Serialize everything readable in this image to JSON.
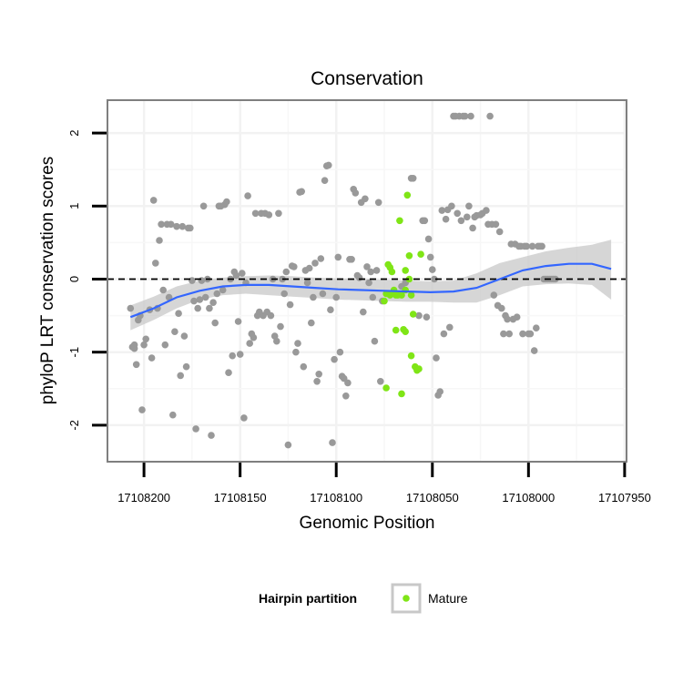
{
  "chart_data": {
    "type": "scatter",
    "title": "Conservation",
    "xlabel": "Genomic Position",
    "ylabel": "phyloP LRT conservation scores",
    "x_reversed": true,
    "xlim": [
      17108219,
      17107949
    ],
    "ylim": [
      -2.5,
      2.45
    ],
    "x_ticks": [
      17108200,
      17108150,
      17108100,
      17108050,
      17108000,
      17107950
    ],
    "x_tick_labels": [
      "17108200",
      "17108150",
      "17108100",
      "17108050",
      "17108000",
      "17107950"
    ],
    "y_ticks": [
      -2,
      -1,
      0,
      1,
      2
    ],
    "y_tick_labels": [
      "-2",
      "-1",
      "0",
      "1",
      "2"
    ],
    "grid": true,
    "reference_line": {
      "y": 0,
      "style": "dashed"
    },
    "legend": {
      "title": "Hairpin partition",
      "placement": "bottom",
      "entries": [
        "Mature"
      ]
    },
    "colors": {
      "other": "#999999",
      "mature": "#7FE516",
      "smooth": "#3366FF",
      "band": "#C8C8C8",
      "panel_border": "#7F7F7F"
    },
    "smooth": {
      "x": [
        17108207,
        17108195,
        17108183,
        17108171,
        17108159,
        17108147,
        17108135,
        17108123,
        17108111,
        17108099,
        17108087,
        17108075,
        17108063,
        17108051,
        17108039,
        17108027,
        17108015,
        17108003,
        17107991,
        17107979,
        17107967,
        17107957
      ],
      "y": [
        -0.52,
        -0.4,
        -0.25,
        -0.16,
        -0.1,
        -0.08,
        -0.08,
        -0.1,
        -0.12,
        -0.14,
        -0.15,
        -0.16,
        -0.17,
        -0.18,
        -0.17,
        -0.12,
        0.0,
        0.12,
        0.18,
        0.21,
        0.21,
        0.14
      ],
      "lower": [
        -0.7,
        -0.56,
        -0.4,
        -0.28,
        -0.22,
        -0.2,
        -0.22,
        -0.24,
        -0.26,
        -0.28,
        -0.29,
        -0.3,
        -0.31,
        -0.31,
        -0.32,
        -0.32,
        -0.22,
        -0.1,
        -0.07,
        -0.06,
        -0.08,
        -0.28
      ],
      "upper": [
        -0.36,
        -0.24,
        -0.1,
        -0.02,
        0.02,
        0.04,
        0.05,
        0.04,
        0.02,
        0.01,
        0.0,
        -0.01,
        -0.02,
        -0.03,
        -0.02,
        0.08,
        0.22,
        0.3,
        0.38,
        0.43,
        0.47,
        0.54
      ]
    },
    "series": [
      {
        "name": "",
        "group": "other",
        "points": [
          [
            17108207,
            -0.4
          ],
          [
            17108206,
            -0.93
          ],
          [
            17108205,
            -0.95
          ],
          [
            17108205,
            -0.9
          ],
          [
            17108204,
            -1.17
          ],
          [
            17108203,
            -0.56
          ],
          [
            17108202,
            -0.5
          ],
          [
            17108201,
            -1.79
          ],
          [
            17108200,
            -0.9
          ],
          [
            17108199,
            -0.82
          ],
          [
            17108197,
            -0.42
          ],
          [
            17108196,
            -1.08
          ],
          [
            17108195,
            1.08
          ],
          [
            17108194,
            0.22
          ],
          [
            17108193,
            -0.4
          ],
          [
            17108192,
            0.53
          ],
          [
            17108191,
            0.75
          ],
          [
            17108190,
            -0.15
          ],
          [
            17108189,
            -0.9
          ],
          [
            17108188,
            0.75
          ],
          [
            17108187,
            -0.25
          ],
          [
            17108186,
            0.75
          ],
          [
            17108185,
            -1.86
          ],
          [
            17108184,
            -0.72
          ],
          [
            17108183,
            0.72
          ],
          [
            17108182,
            -0.47
          ],
          [
            17108181,
            -1.32
          ],
          [
            17108180,
            0.72
          ],
          [
            17108179,
            -0.78
          ],
          [
            17108178,
            -1.2
          ],
          [
            17108177,
            0.7
          ],
          [
            17108176,
            0.7
          ],
          [
            17108175,
            -0.02
          ],
          [
            17108174,
            -0.3
          ],
          [
            17108173,
            -2.05
          ],
          [
            17108172,
            -0.4
          ],
          [
            17108171,
            -0.28
          ],
          [
            17108170,
            -0.02
          ],
          [
            17108169,
            1.0
          ],
          [
            17108168,
            -0.25
          ],
          [
            17108167,
            0.0
          ],
          [
            17108166,
            -0.4
          ],
          [
            17108165,
            -2.14
          ],
          [
            17108164,
            -0.32
          ],
          [
            17108163,
            -0.6
          ],
          [
            17108162,
            -0.2
          ],
          [
            17108161,
            1.0
          ],
          [
            17108160,
            1.0
          ],
          [
            17108159,
            -0.15
          ],
          [
            17108158,
            1.02
          ],
          [
            17108157,
            1.06
          ],
          [
            17108156,
            -1.28
          ],
          [
            17108155,
            0.0
          ],
          [
            17108154,
            -1.05
          ],
          [
            17108153,
            0.1
          ],
          [
            17108152,
            0.05
          ],
          [
            17108151,
            -0.58
          ],
          [
            17108150,
            -1.03
          ],
          [
            17108149,
            0.08
          ],
          [
            17108148,
            -1.9
          ],
          [
            17108147,
            -0.05
          ],
          [
            17108146,
            1.14
          ],
          [
            17108145,
            -0.88
          ],
          [
            17108144,
            -0.75
          ],
          [
            17108143,
            -0.8
          ],
          [
            17108142,
            0.9
          ],
          [
            17108141,
            -0.5
          ],
          [
            17108140,
            -0.45
          ],
          [
            17108139,
            0.9
          ],
          [
            17108138,
            -0.5
          ],
          [
            17108137,
            0.9
          ],
          [
            17108136,
            -0.45
          ],
          [
            17108135,
            0.88
          ],
          [
            17108134,
            -0.5
          ],
          [
            17108133,
            0.0
          ],
          [
            17108132,
            -0.78
          ],
          [
            17108131,
            -0.85
          ],
          [
            17108130,
            0.9
          ],
          [
            17108129,
            -0.65
          ],
          [
            17108128,
            0.0
          ],
          [
            17108127,
            -0.2
          ],
          [
            17108126,
            0.1
          ],
          [
            17108125,
            -2.27
          ],
          [
            17108124,
            -0.35
          ],
          [
            17108123,
            0.18
          ],
          [
            17108122,
            0.17
          ],
          [
            17108121,
            -1.0
          ],
          [
            17108120,
            -0.88
          ],
          [
            17108119,
            1.19
          ],
          [
            17108118,
            1.2
          ],
          [
            17108117,
            -1.2
          ],
          [
            17108116,
            0.12
          ],
          [
            17108115,
            -0.05
          ],
          [
            17108114,
            0.15
          ],
          [
            17108113,
            -0.6
          ],
          [
            17108112,
            -0.25
          ],
          [
            17108111,
            0.22
          ],
          [
            17108110,
            -1.4
          ],
          [
            17108109,
            -1.3
          ],
          [
            17108108,
            0.28
          ],
          [
            17108107,
            -0.2
          ],
          [
            17108106,
            1.35
          ],
          [
            17108105,
            1.55
          ],
          [
            17108104,
            1.56
          ],
          [
            17108103,
            -0.42
          ],
          [
            17108102,
            -2.24
          ],
          [
            17108101,
            -1.1
          ],
          [
            17108100,
            -0.25
          ],
          [
            17108099,
            0.3
          ],
          [
            17108098,
            -1.0
          ],
          [
            17108097,
            -1.33
          ],
          [
            17108096,
            -1.36
          ],
          [
            17108095,
            -1.6
          ],
          [
            17108094,
            -1.42
          ],
          [
            17108093,
            0.27
          ],
          [
            17108092,
            0.27
          ],
          [
            17108091,
            1.23
          ],
          [
            17108090,
            1.18
          ],
          [
            17108089,
            0.05
          ],
          [
            17108088,
            0.02
          ],
          [
            17108087,
            1.05
          ],
          [
            17108086,
            -0.45
          ],
          [
            17108085,
            1.1
          ],
          [
            17108084,
            0.17
          ],
          [
            17108083,
            -0.05
          ],
          [
            17108082,
            0.1
          ],
          [
            17108081,
            -0.25
          ],
          [
            17108080,
            -0.85
          ],
          [
            17108079,
            0.12
          ],
          [
            17108078,
            1.05
          ],
          [
            17108077,
            -1.4
          ],
          [
            17108076,
            -0.3
          ],
          [
            17108066,
            -0.1
          ],
          [
            17108064,
            -0.05
          ],
          [
            17108061,
            1.38
          ],
          [
            17108060,
            1.38
          ],
          [
            17108057,
            -0.5
          ],
          [
            17108055,
            0.8
          ],
          [
            17108054,
            0.8
          ],
          [
            17108053,
            -0.52
          ],
          [
            17108052,
            0.55
          ],
          [
            17108051,
            0.3
          ],
          [
            17108050,
            0.13
          ],
          [
            17108049,
            0.0
          ],
          [
            17108048,
            -1.08
          ],
          [
            17108047,
            -1.59
          ],
          [
            17108046,
            -1.54
          ],
          [
            17108045,
            0.94
          ],
          [
            17108044,
            -0.75
          ],
          [
            17108043,
            0.82
          ],
          [
            17108042,
            0.95
          ],
          [
            17108041,
            -0.66
          ],
          [
            17108040,
            1.0
          ],
          [
            17108039,
            2.23
          ],
          [
            17108038,
            2.23
          ],
          [
            17108037,
            0.9
          ],
          [
            17108036,
            2.23
          ],
          [
            17108035,
            0.8
          ],
          [
            17108034,
            2.23
          ],
          [
            17108033,
            2.23
          ],
          [
            17108032,
            0.85
          ],
          [
            17108031,
            1.0
          ],
          [
            17108030,
            2.23
          ],
          [
            17108029,
            0.7
          ],
          [
            17108028,
            0.85
          ],
          [
            17108027,
            0.87
          ],
          [
            17108025,
            0.88
          ],
          [
            17108024,
            0.9
          ],
          [
            17108022,
            0.94
          ],
          [
            17108021,
            0.75
          ],
          [
            17108020,
            2.23
          ],
          [
            17108019,
            0.75
          ],
          [
            17108018,
            -0.22
          ],
          [
            17108017,
            0.75
          ],
          [
            17108016,
            -0.36
          ],
          [
            17108015,
            0.65
          ],
          [
            17108014,
            -0.4
          ],
          [
            17108013,
            -0.75
          ],
          [
            17108012,
            -0.5
          ],
          [
            17108011,
            -0.55
          ],
          [
            17108010,
            -0.75
          ],
          [
            17108009,
            0.48
          ],
          [
            17108008,
            -0.55
          ],
          [
            17108007,
            0.48
          ],
          [
            17108006,
            -0.52
          ],
          [
            17108005,
            0.45
          ],
          [
            17108004,
            0.45
          ],
          [
            17108003,
            -0.75
          ],
          [
            17108002,
            0.45
          ],
          [
            17108001,
            0.45
          ],
          [
            17108000,
            -0.75
          ],
          [
            17107999,
            -0.75
          ],
          [
            17107998,
            0.45
          ],
          [
            17107997,
            -0.98
          ],
          [
            17107996,
            -0.67
          ],
          [
            17107995,
            0.45
          ],
          [
            17107994,
            0.45
          ],
          [
            17107993,
            0.45
          ],
          [
            17107992,
            0.0
          ],
          [
            17107991,
            0.0
          ],
          [
            17107990,
            0.0
          ],
          [
            17107989,
            0.0
          ],
          [
            17107988,
            0.0
          ],
          [
            17107987,
            0.0
          ],
          [
            17107986,
            0.0
          ]
        ]
      },
      {
        "name": "Mature",
        "group": "mature",
        "points": [
          [
            17108075,
            -0.3
          ],
          [
            17108074,
            -0.2
          ],
          [
            17108073,
            0.2
          ],
          [
            17108072,
            0.16
          ],
          [
            17108071,
            0.1
          ],
          [
            17108070,
            -0.15
          ],
          [
            17108069,
            -0.7
          ],
          [
            17108068,
            -0.22
          ],
          [
            17108067,
            0.8
          ],
          [
            17108066,
            -0.22
          ],
          [
            17108065,
            -0.69
          ],
          [
            17108064,
            0.12
          ],
          [
            17108063,
            1.15
          ],
          [
            17108062,
            0.32
          ],
          [
            17108061,
            -1.05
          ],
          [
            17108060,
            -0.48
          ],
          [
            17108059,
            -1.2
          ],
          [
            17108058,
            -1.25
          ],
          [
            17108057,
            -1.23
          ],
          [
            17108056,
            0.34
          ],
          [
            17108074,
            -1.49
          ],
          [
            17108066,
            -1.57
          ],
          [
            17108064,
            -0.72
          ],
          [
            17108072,
            -0.22
          ],
          [
            17108071,
            -0.2
          ],
          [
            17108069,
            -0.22
          ],
          [
            17108062,
            0.0
          ],
          [
            17108061,
            -0.22
          ],
          [
            17108064,
            -0.15
          ]
        ]
      }
    ]
  }
}
